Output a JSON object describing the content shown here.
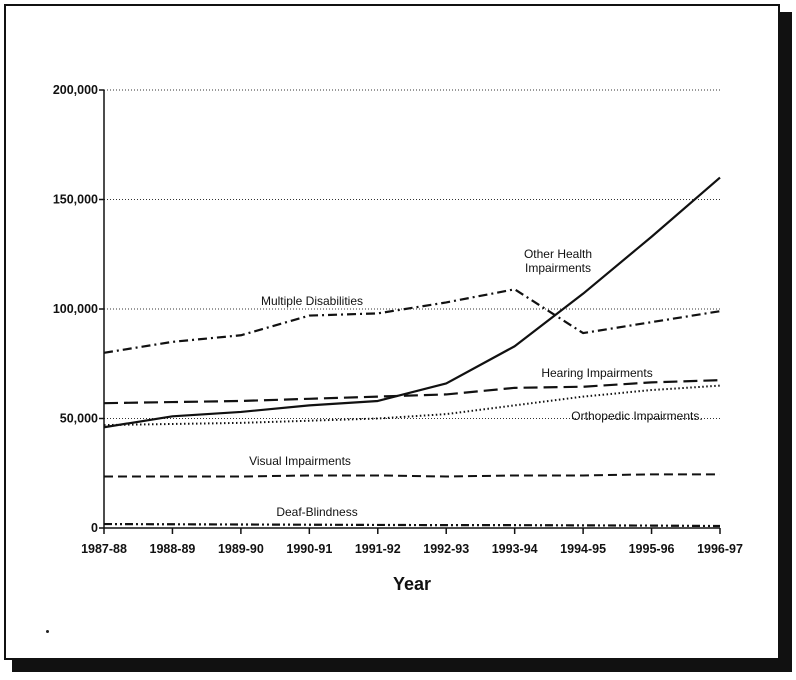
{
  "chart_data": {
    "type": "line",
    "xlabel": "Year",
    "ylabel": "",
    "ylim": [
      0,
      200000
    ],
    "yticks": [
      0,
      50000,
      100000,
      150000,
      200000
    ],
    "ytick_labels": [
      "0",
      "50,000",
      "100,000",
      "150,000",
      "200,000"
    ],
    "grid": "horizontal dotted",
    "categories": [
      "1987-88",
      "1988-89",
      "1989-90",
      "1990-91",
      "1991-92",
      "1992-93",
      "1993-94",
      "1994-95",
      "1995-96",
      "1996-97"
    ],
    "series": [
      {
        "name": "Other Health Impairments",
        "label_lines": [
          "Other Health",
          "Impairments"
        ],
        "style": "solid",
        "values": [
          46000,
          51000,
          53000,
          56000,
          58000,
          66000,
          83000,
          107000,
          133000,
          160000
        ]
      },
      {
        "name": "Multiple Disabilities",
        "label_lines": [
          "Multiple Disabilities"
        ],
        "style": "dash-dot",
        "values": [
          80000,
          85000,
          88000,
          97000,
          98000,
          103000,
          109000,
          89000,
          94000,
          99000
        ]
      },
      {
        "name": "Hearing Impairments",
        "label_lines": [
          "Hearing Impairments"
        ],
        "style": "long-dash",
        "values": [
          57000,
          57500,
          58000,
          59000,
          60000,
          61000,
          64000,
          64500,
          66500,
          67500
        ]
      },
      {
        "name": "Orthopedic Impairments",
        "label_lines": [
          "Orthopedic Impairments."
        ],
        "style": "dotted",
        "values": [
          47000,
          47500,
          48000,
          49000,
          50000,
          52000,
          56000,
          60000,
          63000,
          65000
        ]
      },
      {
        "name": "Visual Impairments",
        "label_lines": [
          "Visual Impairments"
        ],
        "style": "dashed",
        "values": [
          23500,
          23500,
          23500,
          24000,
          24000,
          23500,
          24000,
          24000,
          24500,
          24500
        ]
      },
      {
        "name": "Deaf-Blindness",
        "label_lines": [
          "Deaf-Blindness"
        ],
        "style": "dash-dot-dot",
        "values": [
          1800,
          1700,
          1600,
          1500,
          1400,
          1300,
          1300,
          1200,
          1100,
          900
        ]
      }
    ]
  }
}
